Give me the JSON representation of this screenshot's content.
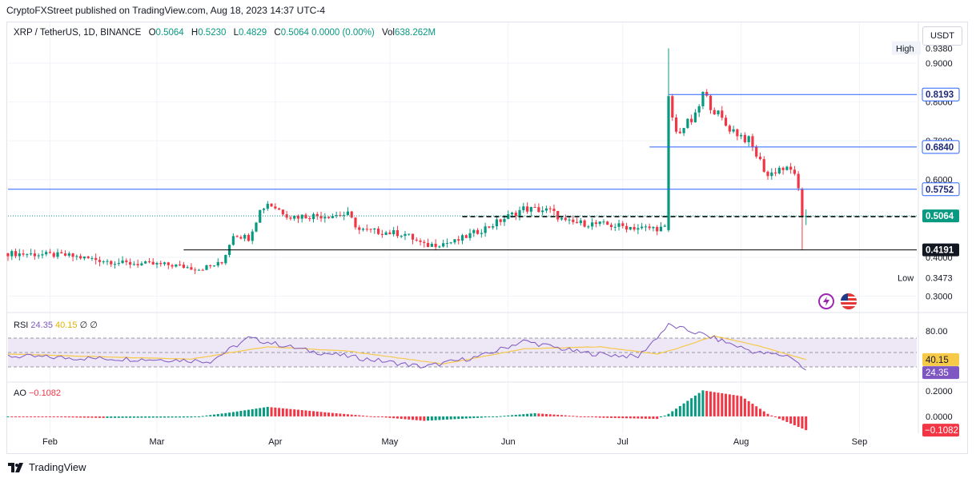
{
  "publisher_line": "CryptoFXStreet published on TradingView.com, Aug 18, 2023 14:37 UTC-4",
  "legend": {
    "symbol": "XRP / TetherUS, 1D, BINANCE",
    "o_key": "O",
    "o": "0.5064",
    "h_key": "H",
    "h": "0.5230",
    "l_key": "L",
    "l": "0.4829",
    "c_key": "C",
    "c": "0.5064",
    "change": "0.0000 (0.00%)",
    "vol_key": "Vol",
    "vol": "638.262M"
  },
  "currency_button": "USDT",
  "rsi_legend": {
    "name": "RSI",
    "v1": "24.35",
    "v2": "40.15",
    "v3": "∅",
    "v4": "∅"
  },
  "ao_legend": {
    "name": "AO",
    "value": "−0.1082"
  },
  "footer": {
    "brand": "TradingView"
  },
  "colors": {
    "up": "#089981",
    "down": "#f23645",
    "level_blue": "#2962ff",
    "rsi_line": "#7e57c2",
    "rsi_ma": "#f7c948",
    "rsi_band": "#ede7f6"
  },
  "chart_data": [
    {
      "type": "candlestick",
      "title": "XRP / TetherUS, 1D, BINANCE",
      "x_tick_labels": [
        "Feb",
        "Mar",
        "Apr",
        "May",
        "Jun",
        "Jul",
        "Aug",
        "Sep"
      ],
      "y_tick_labels": [
        "0.9000",
        "0.8000",
        "0.7000",
        "0.6000",
        "0.4000",
        "0.3000"
      ],
      "y_range": [
        0.27,
        0.97
      ],
      "high_label": "High",
      "high_value": "0.9380",
      "low_label": "Low",
      "low_value": "0.3473",
      "horizontal_levels": [
        {
          "label": "0.8193",
          "value": 0.8193,
          "color": "#2962ff",
          "start_date": "2023-07-13"
        },
        {
          "label": "0.6840",
          "value": 0.684,
          "color": "#2962ff",
          "start_date": "2023-07-08"
        },
        {
          "label": "0.5752",
          "value": 0.5752,
          "color": "#2962ff",
          "start_date": "2023-01-21"
        },
        {
          "label": "0.5048",
          "value": 0.5048,
          "color": "#000000",
          "style": "dashed",
          "start_date": "2023-05-20"
        },
        {
          "label": "0.4191",
          "value": 0.4191,
          "color": "#000000",
          "start_date": "2023-03-08"
        }
      ],
      "last_price": {
        "label": "0.5064",
        "value": 0.5064
      },
      "series_path": [
        [
          "2023-01-21",
          0.41
        ],
        [
          "2023-02-05",
          0.405
        ],
        [
          "2023-02-20",
          0.385
        ],
        [
          "2023-03-05",
          0.38
        ],
        [
          "2023-03-12",
          0.37
        ],
        [
          "2023-03-18",
          0.385
        ],
        [
          "2023-03-21",
          0.46
        ],
        [
          "2023-03-25",
          0.45
        ],
        [
          "2023-03-28",
          0.52
        ],
        [
          "2023-03-30",
          0.54
        ],
        [
          "2023-04-05",
          0.505
        ],
        [
          "2023-04-20",
          0.51
        ],
        [
          "2023-04-23",
          0.47
        ],
        [
          "2023-05-05",
          0.46
        ],
        [
          "2023-05-10",
          0.43
        ],
        [
          "2023-05-18",
          0.44
        ],
        [
          "2023-05-27",
          0.48
        ],
        [
          "2023-06-05",
          0.525
        ],
        [
          "2023-06-12",
          0.52
        ],
        [
          "2023-06-16",
          0.49
        ],
        [
          "2023-06-25",
          0.485
        ],
        [
          "2023-07-06",
          0.475
        ],
        [
          "2023-07-12",
          0.475
        ],
        [
          "2023-07-13",
          0.8
        ],
        [
          "2023-07-15",
          0.72
        ],
        [
          "2023-07-20",
          0.76
        ],
        [
          "2023-07-22",
          0.82
        ],
        [
          "2023-07-28",
          0.74
        ],
        [
          "2023-08-03",
          0.7
        ],
        [
          "2023-08-08",
          0.61
        ],
        [
          "2023-08-11",
          0.63
        ],
        [
          "2023-08-15",
          0.62
        ],
        [
          "2023-08-16",
          0.57
        ],
        [
          "2023-08-17",
          0.43
        ],
        [
          "2023-08-18",
          0.5064
        ]
      ]
    },
    {
      "type": "line",
      "title": "RSI",
      "y_tick_labels": [
        "80.00"
      ],
      "bands": [
        30,
        50,
        70
      ],
      "series": [
        {
          "name": "RSI",
          "value_label": "24.35",
          "path": [
            [
              "2023-01-21",
              45
            ],
            [
              "2023-02-10",
              42
            ],
            [
              "2023-03-05",
              40
            ],
            [
              "2023-03-15",
              38
            ],
            [
              "2023-03-25",
              70
            ],
            [
              "2023-04-10",
              52
            ],
            [
              "2023-05-10",
              30
            ],
            [
              "2023-05-25",
              45
            ],
            [
              "2023-06-05",
              66
            ],
            [
              "2023-06-20",
              50
            ],
            [
              "2023-07-05",
              44
            ],
            [
              "2023-07-13",
              88
            ],
            [
              "2023-07-22",
              75
            ],
            [
              "2023-08-05",
              50
            ],
            [
              "2023-08-14",
              45
            ],
            [
              "2023-08-18",
              24.35
            ]
          ]
        },
        {
          "name": "RSI MA",
          "value_label": "40.15",
          "path": [
            [
              "2023-01-21",
              48
            ],
            [
              "2023-02-15",
              44
            ],
            [
              "2023-03-10",
              41
            ],
            [
              "2023-03-30",
              58
            ],
            [
              "2023-04-20",
              52
            ],
            [
              "2023-05-15",
              34
            ],
            [
              "2023-06-05",
              55
            ],
            [
              "2023-06-25",
              58
            ],
            [
              "2023-07-10",
              48
            ],
            [
              "2023-07-15",
              55
            ],
            [
              "2023-07-25",
              73
            ],
            [
              "2023-08-05",
              60
            ],
            [
              "2023-08-18",
              40.15
            ]
          ]
        }
      ]
    },
    {
      "type": "bar",
      "title": "AO",
      "y_tick_labels": [
        "0.2000",
        "0.0000"
      ],
      "last_value_label": "−0.1082",
      "series_path": [
        [
          "2023-01-21",
          0.0
        ],
        [
          "2023-02-15",
          -0.012
        ],
        [
          "2023-03-10",
          -0.008
        ],
        [
          "2023-03-20",
          0.03
        ],
        [
          "2023-03-30",
          0.075
        ],
        [
          "2023-04-15",
          0.03
        ],
        [
          "2023-05-10",
          -0.035
        ],
        [
          "2023-05-25",
          -0.01
        ],
        [
          "2023-06-08",
          0.025
        ],
        [
          "2023-06-25",
          -0.01
        ],
        [
          "2023-07-10",
          -0.02
        ],
        [
          "2023-07-13",
          0.02
        ],
        [
          "2023-07-22",
          0.205
        ],
        [
          "2023-08-01",
          0.16
        ],
        [
          "2023-08-08",
          0.02
        ],
        [
          "2023-08-18",
          -0.1082
        ]
      ]
    }
  ]
}
